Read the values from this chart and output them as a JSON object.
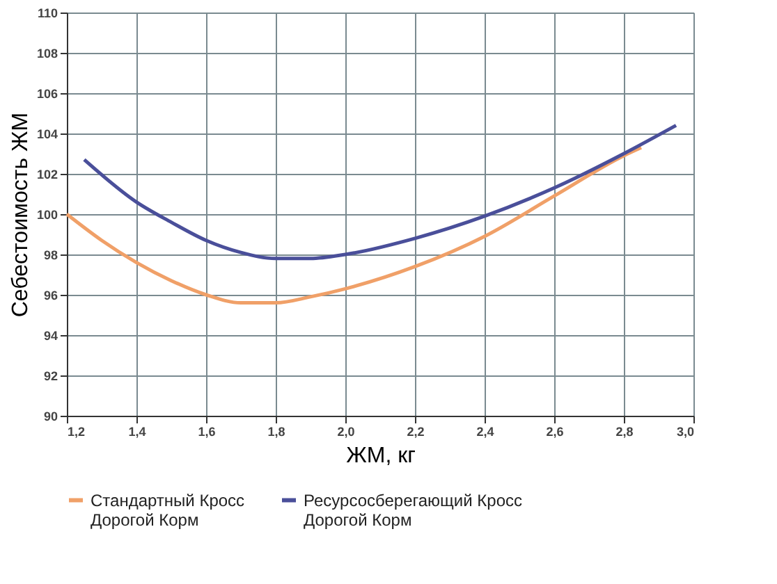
{
  "chart_data": {
    "type": "line",
    "xlabel": "ЖМ, кг",
    "ylabel": "Себестоимость ЖМ",
    "xlim": [
      1.2,
      3.0
    ],
    "xticks": [
      {
        "value": 1.2,
        "label": "1,2"
      },
      {
        "value": 1.4,
        "label": "1,4"
      },
      {
        "value": 1.6,
        "label": "1,6"
      },
      {
        "value": 1.8,
        "label": "1,8"
      },
      {
        "value": 2.0,
        "label": "2,0"
      },
      {
        "value": 2.2,
        "label": "2,2"
      },
      {
        "value": 2.4,
        "label": "2,4"
      },
      {
        "value": 2.6,
        "label": "2,6"
      },
      {
        "value": 2.8,
        "label": "2,8"
      },
      {
        "value": 3.0,
        "label": "3,0"
      }
    ],
    "ylim": [
      90,
      110
    ],
    "yticks": [
      90,
      92,
      94,
      96,
      98,
      100,
      102,
      104,
      106,
      108,
      110
    ],
    "grid": true,
    "legend": "bottom",
    "line_style": "solid",
    "marker": "none",
    "series": [
      {
        "name": "Стандартный Кросс\nДорогой Корм",
        "color": "#f0a068",
        "x": [
          1.2,
          1.3,
          1.4,
          1.5,
          1.6,
          1.7,
          1.8,
          1.9,
          2.0,
          2.2,
          2.4,
          2.6,
          2.8,
          2.85
        ],
        "values": [
          100,
          98.7,
          97.6,
          96.7,
          96.0,
          95.6,
          95.6,
          95.9,
          96.3,
          97.4,
          98.9,
          100.9,
          102.9,
          103.3
        ]
      },
      {
        "name": "Ресурсосберегающий Кросс\nДорогой Корм",
        "color": "#4a4f9a",
        "x": [
          1.25,
          1.4,
          1.5,
          1.6,
          1.7,
          1.8,
          1.9,
          2.0,
          2.2,
          2.4,
          2.6,
          2.8,
          2.95
        ],
        "values": [
          102.7,
          100.6,
          99.6,
          98.7,
          98.1,
          97.8,
          97.8,
          98.0,
          98.8,
          99.9,
          101.3,
          103.0,
          104.4
        ]
      }
    ]
  }
}
